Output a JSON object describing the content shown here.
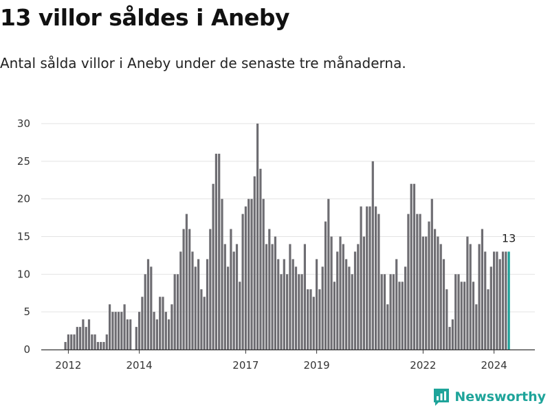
{
  "header": {
    "title": "13 villor såldes i Aneby",
    "subtitle": "Antal sålda villor i Aneby under de senaste tre månaderna."
  },
  "brand": {
    "name": "Newsworthy",
    "icon": "newsworthy-logo-icon",
    "color": "#1ea49a"
  },
  "chart_data": {
    "type": "bar",
    "title": "",
    "xlabel": "",
    "ylabel": "",
    "ylim": [
      0,
      30
    ],
    "yticks": [
      0,
      5,
      10,
      15,
      20,
      25,
      30
    ],
    "grid": true,
    "bar_color": "#6e6d72",
    "highlight_color": "#1aa198",
    "xtick_labels": [
      {
        "label": "2012",
        "index": 1
      },
      {
        "label": "2014",
        "index": 25
      },
      {
        "label": "2017",
        "index": 61
      },
      {
        "label": "2019",
        "index": 85
      },
      {
        "label": "2022",
        "index": 121
      },
      {
        "label": "2024",
        "index": 145
      }
    ],
    "values": [
      1,
      2,
      2,
      2,
      3,
      3,
      4,
      3,
      4,
      2,
      2,
      1,
      1,
      1,
      2,
      6,
      5,
      5,
      5,
      5,
      6,
      4,
      4,
      0,
      3,
      5,
      7,
      10,
      12,
      11,
      5,
      4,
      7,
      7,
      5,
      4,
      6,
      10,
      10,
      13,
      16,
      18,
      16,
      13,
      11,
      12,
      8,
      7,
      12,
      16,
      22,
      26,
      26,
      20,
      14,
      11,
      16,
      13,
      14,
      9,
      18,
      19,
      20,
      20,
      23,
      30,
      24,
      20,
      14,
      16,
      14,
      15,
      12,
      10,
      12,
      10,
      14,
      12,
      11,
      10,
      10,
      14,
      8,
      8,
      7,
      12,
      8,
      11,
      17,
      20,
      15,
      9,
      13,
      15,
      14,
      12,
      11,
      10,
      13,
      14,
      19,
      15,
      19,
      19,
      25,
      19,
      18,
      10,
      10,
      6,
      10,
      10,
      12,
      9,
      9,
      11,
      18,
      22,
      22,
      18,
      18,
      15,
      15,
      17,
      20,
      16,
      15,
      14,
      12,
      8,
      3,
      4,
      10,
      10,
      9,
      9,
      15,
      14,
      9,
      6,
      14,
      16,
      13,
      8,
      11,
      13,
      13,
      12,
      13,
      13,
      13
    ],
    "highlight_index": 150,
    "annotation": {
      "label": "13",
      "index": 150
    }
  }
}
